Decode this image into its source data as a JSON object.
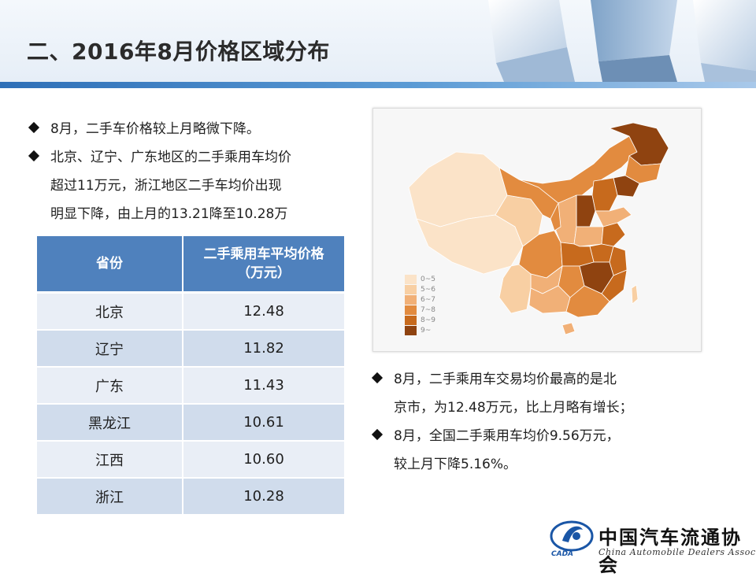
{
  "header": {
    "title": "二、2016年8月价格区域分布"
  },
  "left_bullets": [
    {
      "lines": [
        "8月，二手车价格较上月略微下降。"
      ]
    },
    {
      "lines": [
        "北京、辽宁、广东地区的二手乘用车均价",
        "超过11万元，浙江地区二手车均价出现",
        "明显下降，由上月的13.21降至10.28万"
      ]
    }
  ],
  "table": {
    "headers": [
      "省份",
      "二手乘用车平均价格（万元）"
    ],
    "header_line1": "二手乘用车平均价格",
    "header_line2": "（万元）",
    "rows": [
      {
        "province": "北京",
        "price": "12.48"
      },
      {
        "province": "辽宁",
        "price": "11.82"
      },
      {
        "province": "广东",
        "price": "11.43"
      },
      {
        "province": "黑龙江",
        "price": "10.61"
      },
      {
        "province": "江西",
        "price": "10.60"
      },
      {
        "province": "浙江",
        "price": "10.28"
      }
    ]
  },
  "map": {
    "legend": [
      {
        "label": "0~5",
        "color": "#fbe3c8"
      },
      {
        "label": "5~6",
        "color": "#f8cfa3"
      },
      {
        "label": "6~7",
        "color": "#f1b077"
      },
      {
        "label": "7~8",
        "color": "#e28b3f"
      },
      {
        "label": "8~9",
        "color": "#c76a1d"
      },
      {
        "label": "9~",
        "color": "#8f4310"
      }
    ]
  },
  "right_bullets": [
    {
      "lines": [
        "8月，二手乘用车交易均价最高的是北",
        "京市，为12.48万元，比上月略有增长；"
      ]
    },
    {
      "lines": [
        "8月，全国二手乘用车均价9.56万元，",
        "较上月下降5.16%。"
      ]
    }
  ],
  "logo": {
    "name_cn": "中国汽车流通协会",
    "name_en": "China Automobile Dealers Association",
    "abbr": "CADA"
  },
  "colors": {
    "accent_blue": "#4f81bd",
    "table_row_light": "#e9eef6",
    "table_row_dark": "#d0dcec"
  }
}
